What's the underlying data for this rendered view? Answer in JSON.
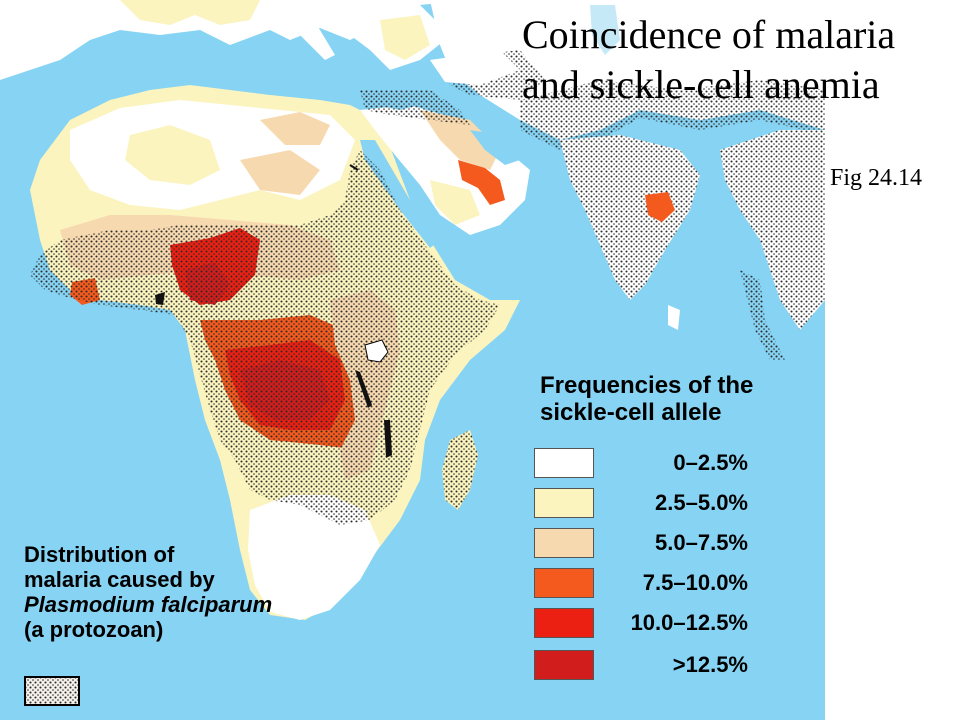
{
  "title": "Coincidence of malaria\nand sickle-cell anemia",
  "figure_label": "Fig 24.14",
  "sickle_cell_legend": {
    "title": "Frequencies of the sickle-cell allele",
    "items": [
      {
        "label": "0–2.5%",
        "color": "#ffffff"
      },
      {
        "label": "2.5–5.0%",
        "color": "#fbf4bf"
      },
      {
        "label": "5.0–7.5%",
        "color": "#f7d9b0"
      },
      {
        "label": "7.5–10.0%",
        "color": "#f45a1e"
      },
      {
        "label": "10.0–12.5%",
        "color": "#ec2012"
      },
      {
        "label": ">12.5%",
        "color": "#d21d1d"
      }
    ]
  },
  "malaria_legend": {
    "line1": "Distribution of",
    "line2": "malaria caused by",
    "line3": "Plasmodium falciparum",
    "line4": "(a protozoan)"
  },
  "colors": {
    "ocean": "#87d3f3",
    "land_outside": "#ffffff",
    "malaria_stipple": "#333333"
  }
}
